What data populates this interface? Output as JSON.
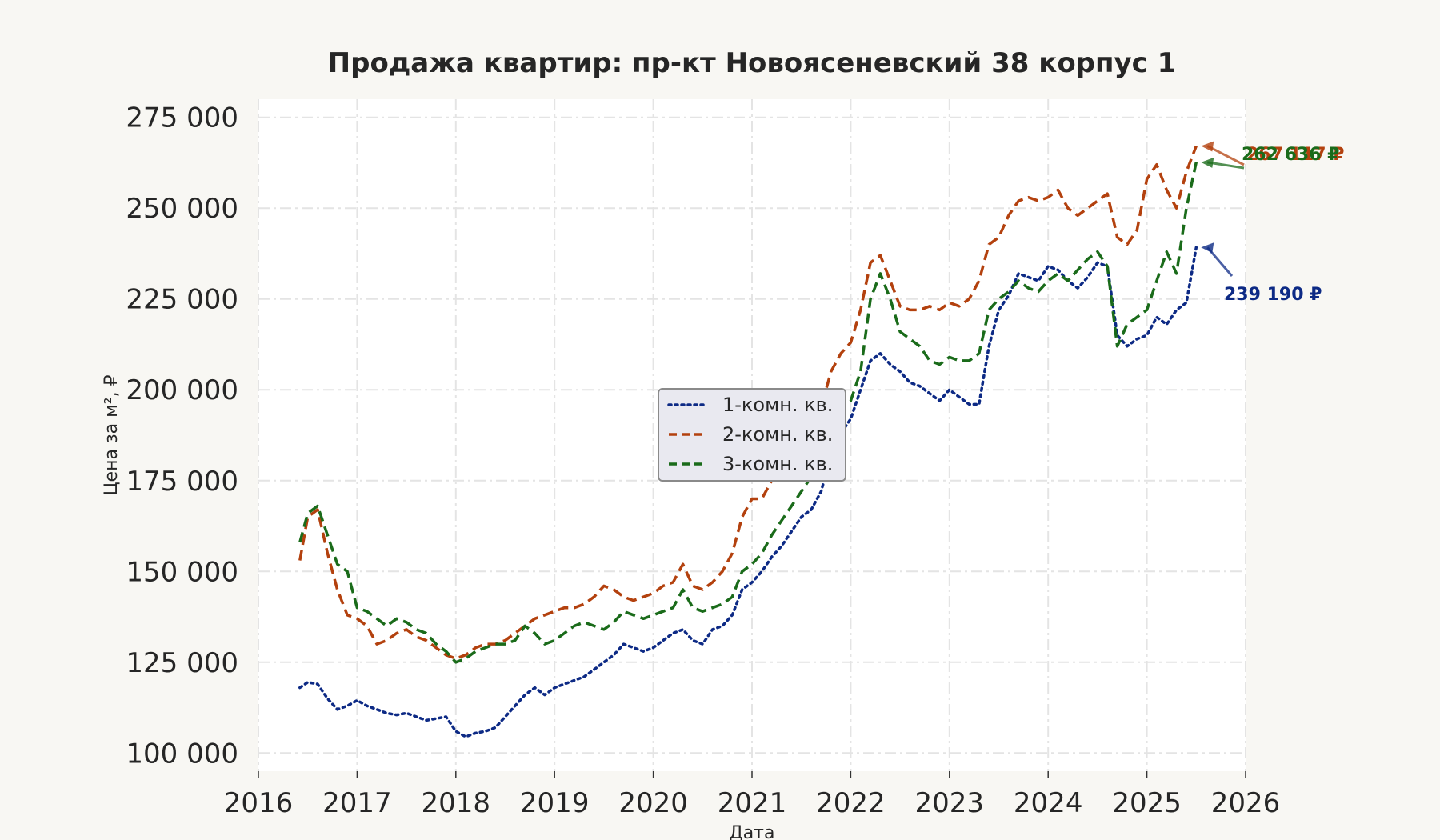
{
  "chart_data": {
    "type": "line",
    "title": "Продажа квартир: пр-кт Новоясеневский 38 корпус 1",
    "xlabel": "Дата",
    "ylabel": "Цена за м², ₽",
    "xlim": [
      2016,
      2026
    ],
    "ylim": [
      95000,
      280000
    ],
    "x_ticks": [
      2016,
      2017,
      2018,
      2019,
      2020,
      2021,
      2022,
      2023,
      2024,
      2025,
      2026
    ],
    "x_tick_labels": [
      "2016",
      "2017",
      "2018",
      "2019",
      "2020",
      "2021",
      "2022",
      "2023",
      "2024",
      "2025",
      "2026"
    ],
    "y_ticks": [
      100000,
      125000,
      150000,
      175000,
      200000,
      225000,
      250000,
      275000
    ],
    "y_tick_labels": [
      "100 000",
      "125 000",
      "150 000",
      "175 000",
      "200 000",
      "225 000",
      "250 000",
      "275 000"
    ],
    "grid": true,
    "legend_position": "center",
    "series": [
      {
        "name": "1-комн. кв.",
        "color": "#0d2a85",
        "dash": "dotted",
        "end_label": "239 190 ₽",
        "points": [
          [
            2016.42,
            118000
          ],
          [
            2016.5,
            119500
          ],
          [
            2016.6,
            119000
          ],
          [
            2016.7,
            115000
          ],
          [
            2016.8,
            112000
          ],
          [
            2016.9,
            113000
          ],
          [
            2017.0,
            114500
          ],
          [
            2017.1,
            113000
          ],
          [
            2017.2,
            112000
          ],
          [
            2017.3,
            111000
          ],
          [
            2017.4,
            110500
          ],
          [
            2017.5,
            111000
          ],
          [
            2017.6,
            110000
          ],
          [
            2017.7,
            109000
          ],
          [
            2017.8,
            109500
          ],
          [
            2017.9,
            110000
          ],
          [
            2018.0,
            106000
          ],
          [
            2018.1,
            104500
          ],
          [
            2018.2,
            105500
          ],
          [
            2018.3,
            106000
          ],
          [
            2018.4,
            107000
          ],
          [
            2018.5,
            110000
          ],
          [
            2018.6,
            113000
          ],
          [
            2018.7,
            116000
          ],
          [
            2018.8,
            118000
          ],
          [
            2018.9,
            116000
          ],
          [
            2019.0,
            118000
          ],
          [
            2019.1,
            119000
          ],
          [
            2019.2,
            120000
          ],
          [
            2019.3,
            121000
          ],
          [
            2019.4,
            123000
          ],
          [
            2019.5,
            125000
          ],
          [
            2019.6,
            127000
          ],
          [
            2019.7,
            130000
          ],
          [
            2019.8,
            129000
          ],
          [
            2019.9,
            128000
          ],
          [
            2020.0,
            129000
          ],
          [
            2020.1,
            131000
          ],
          [
            2020.2,
            133000
          ],
          [
            2020.3,
            134000
          ],
          [
            2020.4,
            131000
          ],
          [
            2020.5,
            130000
          ],
          [
            2020.6,
            134000
          ],
          [
            2020.7,
            135000
          ],
          [
            2020.8,
            138000
          ],
          [
            2020.9,
            145000
          ],
          [
            2021.0,
            147000
          ],
          [
            2021.1,
            150000
          ],
          [
            2021.2,
            154000
          ],
          [
            2021.3,
            157000
          ],
          [
            2021.4,
            161000
          ],
          [
            2021.5,
            165000
          ],
          [
            2021.6,
            167000
          ],
          [
            2021.7,
            172000
          ],
          [
            2021.8,
            182000
          ],
          [
            2021.9,
            188000
          ],
          [
            2022.0,
            192000
          ],
          [
            2022.1,
            200000
          ],
          [
            2022.2,
            208000
          ],
          [
            2022.3,
            210000
          ],
          [
            2022.4,
            207000
          ],
          [
            2022.5,
            205000
          ],
          [
            2022.6,
            202000
          ],
          [
            2022.7,
            201000
          ],
          [
            2022.8,
            199000
          ],
          [
            2022.9,
            197000
          ],
          [
            2023.0,
            200000
          ],
          [
            2023.1,
            198000
          ],
          [
            2023.2,
            196000
          ],
          [
            2023.3,
            196000
          ],
          [
            2023.4,
            212000
          ],
          [
            2023.5,
            222000
          ],
          [
            2023.6,
            226000
          ],
          [
            2023.7,
            232000
          ],
          [
            2023.8,
            231000
          ],
          [
            2023.9,
            230000
          ],
          [
            2024.0,
            234000
          ],
          [
            2024.1,
            233000
          ],
          [
            2024.2,
            230000
          ],
          [
            2024.3,
            228000
          ],
          [
            2024.4,
            231000
          ],
          [
            2024.5,
            235000
          ],
          [
            2024.6,
            234000
          ],
          [
            2024.7,
            215000
          ],
          [
            2024.8,
            212000
          ],
          [
            2024.9,
            214000
          ],
          [
            2025.0,
            215000
          ],
          [
            2025.1,
            220000
          ],
          [
            2025.2,
            218000
          ],
          [
            2025.3,
            222000
          ],
          [
            2025.4,
            224000
          ],
          [
            2025.5,
            239190
          ]
        ]
      },
      {
        "name": "2-комн. кв.",
        "color": "#b3410e",
        "dash": "dashed",
        "end_label": "267 117 ₽",
        "points": [
          [
            2016.42,
            153000
          ],
          [
            2016.5,
            165000
          ],
          [
            2016.6,
            167000
          ],
          [
            2016.7,
            155000
          ],
          [
            2016.8,
            145000
          ],
          [
            2016.9,
            138000
          ],
          [
            2017.0,
            137000
          ],
          [
            2017.1,
            135000
          ],
          [
            2017.2,
            130000
          ],
          [
            2017.3,
            131000
          ],
          [
            2017.4,
            133000
          ],
          [
            2017.5,
            134000
          ],
          [
            2017.6,
            132000
          ],
          [
            2017.7,
            131000
          ],
          [
            2017.8,
            129000
          ],
          [
            2017.9,
            127000
          ],
          [
            2018.0,
            126000
          ],
          [
            2018.1,
            127000
          ],
          [
            2018.2,
            129000
          ],
          [
            2018.3,
            130000
          ],
          [
            2018.4,
            130000
          ],
          [
            2018.5,
            131000
          ],
          [
            2018.6,
            133000
          ],
          [
            2018.7,
            135000
          ],
          [
            2018.8,
            137000
          ],
          [
            2018.9,
            138000
          ],
          [
            2019.0,
            139000
          ],
          [
            2019.1,
            140000
          ],
          [
            2019.2,
            140000
          ],
          [
            2019.3,
            141000
          ],
          [
            2019.4,
            143000
          ],
          [
            2019.5,
            146000
          ],
          [
            2019.6,
            145000
          ],
          [
            2019.7,
            143000
          ],
          [
            2019.8,
            142000
          ],
          [
            2019.9,
            143000
          ],
          [
            2020.0,
            144000
          ],
          [
            2020.1,
            146000
          ],
          [
            2020.2,
            147000
          ],
          [
            2020.3,
            152000
          ],
          [
            2020.4,
            146000
          ],
          [
            2020.5,
            145000
          ],
          [
            2020.6,
            147000
          ],
          [
            2020.7,
            150000
          ],
          [
            2020.8,
            155000
          ],
          [
            2020.9,
            165000
          ],
          [
            2021.0,
            170000
          ],
          [
            2021.1,
            170000
          ],
          [
            2021.2,
            175000
          ],
          [
            2021.3,
            180000
          ],
          [
            2021.4,
            184000
          ],
          [
            2021.5,
            187000
          ],
          [
            2021.6,
            190000
          ],
          [
            2021.7,
            195000
          ],
          [
            2021.8,
            205000
          ],
          [
            2021.9,
            210000
          ],
          [
            2022.0,
            213000
          ],
          [
            2022.1,
            222000
          ],
          [
            2022.2,
            235000
          ],
          [
            2022.3,
            237000
          ],
          [
            2022.4,
            230000
          ],
          [
            2022.5,
            223000
          ],
          [
            2022.6,
            222000
          ],
          [
            2022.7,
            222000
          ],
          [
            2022.8,
            223000
          ],
          [
            2022.9,
            222000
          ],
          [
            2023.0,
            224000
          ],
          [
            2023.1,
            223000
          ],
          [
            2023.2,
            225000
          ],
          [
            2023.3,
            230000
          ],
          [
            2023.4,
            240000
          ],
          [
            2023.5,
            242000
          ],
          [
            2023.6,
            248000
          ],
          [
            2023.7,
            252000
          ],
          [
            2023.8,
            253000
          ],
          [
            2023.9,
            252000
          ],
          [
            2024.0,
            253000
          ],
          [
            2024.1,
            255000
          ],
          [
            2024.2,
            250000
          ],
          [
            2024.3,
            248000
          ],
          [
            2024.4,
            250000
          ],
          [
            2024.5,
            252000
          ],
          [
            2024.6,
            254000
          ],
          [
            2024.7,
            242000
          ],
          [
            2024.8,
            240000
          ],
          [
            2024.9,
            244000
          ],
          [
            2025.0,
            258000
          ],
          [
            2025.1,
            262000
          ],
          [
            2025.2,
            255000
          ],
          [
            2025.3,
            250000
          ],
          [
            2025.4,
            260000
          ],
          [
            2025.5,
            267117
          ]
        ]
      },
      {
        "name": "3-комн. кв.",
        "color": "#1a6b1a",
        "dash": "dashed",
        "end_label": "262 636 ₽",
        "points": [
          [
            2016.42,
            158000
          ],
          [
            2016.5,
            166000
          ],
          [
            2016.6,
            168000
          ],
          [
            2016.7,
            160000
          ],
          [
            2016.8,
            152000
          ],
          [
            2016.9,
            150000
          ],
          [
            2017.0,
            140000
          ],
          [
            2017.1,
            139000
          ],
          [
            2017.2,
            137000
          ],
          [
            2017.3,
            135000
          ],
          [
            2017.4,
            137000
          ],
          [
            2017.5,
            136000
          ],
          [
            2017.6,
            134000
          ],
          [
            2017.7,
            133000
          ],
          [
            2017.8,
            130000
          ],
          [
            2017.9,
            128000
          ],
          [
            2018.0,
            125000
          ],
          [
            2018.1,
            126000
          ],
          [
            2018.2,
            128000
          ],
          [
            2018.3,
            129000
          ],
          [
            2018.4,
            130000
          ],
          [
            2018.5,
            130000
          ],
          [
            2018.6,
            131000
          ],
          [
            2018.7,
            135000
          ],
          [
            2018.8,
            133000
          ],
          [
            2018.9,
            130000
          ],
          [
            2019.0,
            131000
          ],
          [
            2019.1,
            133000
          ],
          [
            2019.2,
            135000
          ],
          [
            2019.3,
            136000
          ],
          [
            2019.4,
            135000
          ],
          [
            2019.5,
            134000
          ],
          [
            2019.6,
            136000
          ],
          [
            2019.7,
            139000
          ],
          [
            2019.8,
            138000
          ],
          [
            2019.9,
            137000
          ],
          [
            2020.0,
            138000
          ],
          [
            2020.1,
            139000
          ],
          [
            2020.2,
            140000
          ],
          [
            2020.3,
            145000
          ],
          [
            2020.4,
            140000
          ],
          [
            2020.5,
            139000
          ],
          [
            2020.6,
            140000
          ],
          [
            2020.7,
            141000
          ],
          [
            2020.8,
            143000
          ],
          [
            2020.9,
            150000
          ],
          [
            2021.0,
            152000
          ],
          [
            2021.1,
            155000
          ],
          [
            2021.2,
            160000
          ],
          [
            2021.3,
            164000
          ],
          [
            2021.4,
            168000
          ],
          [
            2021.5,
            172000
          ],
          [
            2021.6,
            176000
          ],
          [
            2021.7,
            180000
          ],
          [
            2021.8,
            188000
          ],
          [
            2021.9,
            195000
          ],
          [
            2022.0,
            197000
          ],
          [
            2022.1,
            205000
          ],
          [
            2022.2,
            225000
          ],
          [
            2022.3,
            232000
          ],
          [
            2022.4,
            225000
          ],
          [
            2022.5,
            216000
          ],
          [
            2022.6,
            214000
          ],
          [
            2022.7,
            212000
          ],
          [
            2022.8,
            208000
          ],
          [
            2022.9,
            207000
          ],
          [
            2023.0,
            209000
          ],
          [
            2023.1,
            208000
          ],
          [
            2023.2,
            208000
          ],
          [
            2023.3,
            210000
          ],
          [
            2023.4,
            222000
          ],
          [
            2023.5,
            225000
          ],
          [
            2023.6,
            227000
          ],
          [
            2023.7,
            230000
          ],
          [
            2023.8,
            228000
          ],
          [
            2023.9,
            227000
          ],
          [
            2024.0,
            230000
          ],
          [
            2024.1,
            232000
          ],
          [
            2024.2,
            230000
          ],
          [
            2024.3,
            233000
          ],
          [
            2024.4,
            236000
          ],
          [
            2024.5,
            238000
          ],
          [
            2024.6,
            234000
          ],
          [
            2024.7,
            212000
          ],
          [
            2024.8,
            218000
          ],
          [
            2024.9,
            220000
          ],
          [
            2025.0,
            222000
          ],
          [
            2025.1,
            230000
          ],
          [
            2025.2,
            238000
          ],
          [
            2025.3,
            232000
          ],
          [
            2025.4,
            250000
          ],
          [
            2025.5,
            262636
          ]
        ]
      }
    ]
  }
}
